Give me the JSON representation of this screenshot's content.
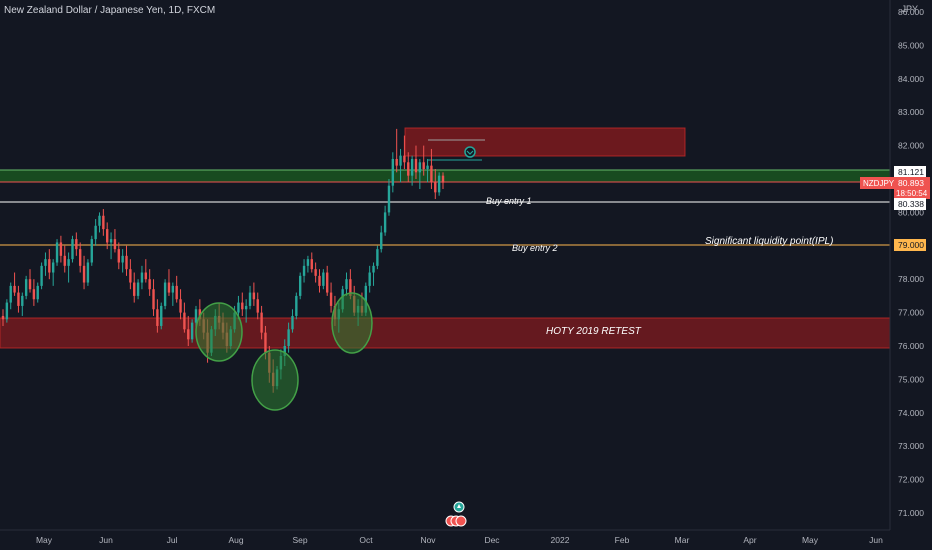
{
  "header": {
    "title": "New Zealand Dollar / Japanese Yen, 1D, FXCM",
    "currency": "JPY"
  },
  "colors": {
    "background": "#131722",
    "up_candle": "#26a69a",
    "down_candle": "#ef5350",
    "zone_red": "#b71c1c",
    "zone_green": "#1b5e20",
    "ellipse_green": "#2e7d32",
    "ipl_line": "#ffb74d",
    "entry_line": "#ffffff"
  },
  "chart_data": {
    "type": "candlestick",
    "symbol": "NZDJPY",
    "x_ticks": [
      "May",
      "Jun",
      "Jul",
      "Aug",
      "Sep",
      "Oct",
      "Nov",
      "Dec",
      "2022",
      "Feb",
      "Mar",
      "Apr",
      "May",
      "Jun"
    ],
    "y_ticks": [
      "71.000",
      "72.000",
      "73.000",
      "74.000",
      "75.000",
      "76.000",
      "77.000",
      "78.000",
      "79.000",
      "80.000",
      "81.000",
      "82.000",
      "83.000",
      "84.000",
      "85.000",
      "86.000"
    ],
    "ylim": [
      70.3,
      86.2
    ],
    "price_labels": {
      "top_zone": "81.121",
      "symbol_tag": "NZDJPY",
      "last_price": "80.893",
      "countdown": "18:50:54",
      "buy_entry_1": "80.338",
      "ipl": "79.000"
    },
    "levels": {
      "buy_entry_1": 80.338,
      "ipl": 79.0,
      "green_zone": [
        80.85,
        81.2
      ]
    },
    "zones": [
      {
        "name": "HOTY 2019 RETEST",
        "low": 75.85,
        "high": 76.75
      },
      {
        "name": "",
        "low": 81.75,
        "high": 82.6
      }
    ],
    "annotations": {
      "buy_entry_1": "Buy entry 1",
      "buy_entry_2": "Buy entry 2",
      "ipl_text": "Significant liquidity point(IPL)",
      "hoty_text": "HOTY 2019 RETEST"
    },
    "series": [
      {
        "name": "NZDJPY",
        "ohlc": [
          [
            76.9,
            77.1,
            76.6,
            76.8
          ],
          [
            76.8,
            77.4,
            76.7,
            77.3
          ],
          [
            77.3,
            77.9,
            77.1,
            77.8
          ],
          [
            77.8,
            78.2,
            77.5,
            77.6
          ],
          [
            77.6,
            77.8,
            77.0,
            77.2
          ],
          [
            77.2,
            77.6,
            76.9,
            77.5
          ],
          [
            77.5,
            78.1,
            77.4,
            78.0
          ],
          [
            78.0,
            78.3,
            77.6,
            77.7
          ],
          [
            77.7,
            78.0,
            77.2,
            77.4
          ],
          [
            77.4,
            77.9,
            77.3,
            77.8
          ],
          [
            77.8,
            78.5,
            77.7,
            78.4
          ],
          [
            78.4,
            78.8,
            78.1,
            78.6
          ],
          [
            78.6,
            78.9,
            78.0,
            78.2
          ],
          [
            78.2,
            78.6,
            77.8,
            78.5
          ],
          [
            78.5,
            79.2,
            78.4,
            79.1
          ],
          [
            79.1,
            79.3,
            78.5,
            78.7
          ],
          [
            78.7,
            79.0,
            78.2,
            78.4
          ],
          [
            78.4,
            78.8,
            77.9,
            78.6
          ],
          [
            78.6,
            79.3,
            78.5,
            79.2
          ],
          [
            79.2,
            79.4,
            78.7,
            78.9
          ],
          [
            78.9,
            79.1,
            78.2,
            78.4
          ],
          [
            78.4,
            78.7,
            77.7,
            77.9
          ],
          [
            77.9,
            78.6,
            77.8,
            78.5
          ],
          [
            78.5,
            79.3,
            78.4,
            79.2
          ],
          [
            79.2,
            79.8,
            79.0,
            79.6
          ],
          [
            79.6,
            80.0,
            79.4,
            79.9
          ],
          [
            79.9,
            80.1,
            79.3,
            79.5
          ],
          [
            79.5,
            79.7,
            78.9,
            79.1
          ],
          [
            79.1,
            79.4,
            78.6,
            79.2
          ],
          [
            79.2,
            79.5,
            78.8,
            78.9
          ],
          [
            78.9,
            79.1,
            78.3,
            78.5
          ],
          [
            78.5,
            78.9,
            78.2,
            78.7
          ],
          [
            78.7,
            79.0,
            78.1,
            78.3
          ],
          [
            78.3,
            78.6,
            77.7,
            77.9
          ],
          [
            77.9,
            78.2,
            77.3,
            77.5
          ],
          [
            77.5,
            78.0,
            77.4,
            77.9
          ],
          [
            77.9,
            78.4,
            77.7,
            78.2
          ],
          [
            78.2,
            78.6,
            77.9,
            78.0
          ],
          [
            78.0,
            78.3,
            77.5,
            77.7
          ],
          [
            77.7,
            78.0,
            76.9,
            77.1
          ],
          [
            77.1,
            77.4,
            76.4,
            76.6
          ],
          [
            76.6,
            77.3,
            76.5,
            77.2
          ],
          [
            77.2,
            78.0,
            77.1,
            77.9
          ],
          [
            77.9,
            78.3,
            77.5,
            77.6
          ],
          [
            77.6,
            77.9,
            77.2,
            77.8
          ],
          [
            77.8,
            78.1,
            77.3,
            77.4
          ],
          [
            77.4,
            77.7,
            76.8,
            77.0
          ],
          [
            77.0,
            77.3,
            76.4,
            76.5
          ],
          [
            76.5,
            76.9,
            76.0,
            76.2
          ],
          [
            76.2,
            76.8,
            76.1,
            76.7
          ],
          [
            76.7,
            77.2,
            76.4,
            77.1
          ],
          [
            77.1,
            77.4,
            76.6,
            76.8
          ],
          [
            76.8,
            77.0,
            76.2,
            76.4
          ],
          [
            76.4,
            76.8,
            75.5,
            75.8
          ],
          [
            75.8,
            76.6,
            75.7,
            76.5
          ],
          [
            76.5,
            77.1,
            76.3,
            76.9
          ],
          [
            76.9,
            77.3,
            76.5,
            76.7
          ],
          [
            76.7,
            77.0,
            76.2,
            76.4
          ],
          [
            76.4,
            76.7,
            75.8,
            76.0
          ],
          [
            76.0,
            76.6,
            75.9,
            76.5
          ],
          [
            76.5,
            77.2,
            76.4,
            77.0
          ],
          [
            77.0,
            77.5,
            76.8,
            77.3
          ],
          [
            77.3,
            77.6,
            76.9,
            77.1
          ],
          [
            77.1,
            77.4,
            76.7,
            77.2
          ],
          [
            77.2,
            77.8,
            77.1,
            77.6
          ],
          [
            77.6,
            77.9,
            77.2,
            77.4
          ],
          [
            77.4,
            77.6,
            76.8,
            77.0
          ],
          [
            77.0,
            77.2,
            76.2,
            76.4
          ],
          [
            76.4,
            76.6,
            75.6,
            75.8
          ],
          [
            75.8,
            76.0,
            74.9,
            75.2
          ],
          [
            75.2,
            75.6,
            74.6,
            74.8
          ],
          [
            74.8,
            75.4,
            74.7,
            75.3
          ],
          [
            75.3,
            75.9,
            75.0,
            75.7
          ],
          [
            75.7,
            76.2,
            75.4,
            76.0
          ],
          [
            76.0,
            76.7,
            75.8,
            76.5
          ],
          [
            76.5,
            77.1,
            76.4,
            76.9
          ],
          [
            76.9,
            77.6,
            76.8,
            77.5
          ],
          [
            77.5,
            78.2,
            77.4,
            78.1
          ],
          [
            78.1,
            78.6,
            77.9,
            78.4
          ],
          [
            78.4,
            78.7,
            78.2,
            78.6
          ],
          [
            78.6,
            78.8,
            78.2,
            78.3
          ],
          [
            78.3,
            78.5,
            77.9,
            78.1
          ],
          [
            78.1,
            78.3,
            77.6,
            77.8
          ],
          [
            77.8,
            78.3,
            77.7,
            78.2
          ],
          [
            78.2,
            78.4,
            77.5,
            77.6
          ],
          [
            77.6,
            77.9,
            77.0,
            77.2
          ],
          [
            77.2,
            77.5,
            76.6,
            76.8
          ],
          [
            76.8,
            77.3,
            76.4,
            77.1
          ],
          [
            77.1,
            77.8,
            77.0,
            77.7
          ],
          [
            77.7,
            78.2,
            77.5,
            78.0
          ],
          [
            78.0,
            78.3,
            77.4,
            77.5
          ],
          [
            77.5,
            77.8,
            76.9,
            77.0
          ],
          [
            77.0,
            77.4,
            76.6,
            77.2
          ],
          [
            77.2,
            77.6,
            76.9,
            77.0
          ],
          [
            77.0,
            77.9,
            76.9,
            77.8
          ],
          [
            77.8,
            78.4,
            77.6,
            78.2
          ],
          [
            78.2,
            78.5,
            77.8,
            78.4
          ],
          [
            78.4,
            79.0,
            78.3,
            78.9
          ],
          [
            78.9,
            79.6,
            78.8,
            79.4
          ],
          [
            79.4,
            80.2,
            79.3,
            80.0
          ],
          [
            80.0,
            81.0,
            79.9,
            80.8
          ],
          [
            80.8,
            81.8,
            80.6,
            81.6
          ],
          [
            81.6,
            82.5,
            81.2,
            81.4
          ],
          [
            81.4,
            81.9,
            80.9,
            81.7
          ],
          [
            81.7,
            82.3,
            81.3,
            81.5
          ],
          [
            81.5,
            81.8,
            80.9,
            81.1
          ],
          [
            81.1,
            81.7,
            80.8,
            81.6
          ],
          [
            81.6,
            82.0,
            81.0,
            81.2
          ],
          [
            81.2,
            81.6,
            80.7,
            81.5
          ],
          [
            81.5,
            82.0,
            81.1,
            81.3
          ],
          [
            81.3,
            81.6,
            80.9,
            81.4
          ],
          [
            81.4,
            81.9,
            80.7,
            80.9
          ],
          [
            80.9,
            81.3,
            80.4,
            80.6
          ],
          [
            80.6,
            81.2,
            80.5,
            81.1
          ],
          [
            81.1,
            81.2,
            80.7,
            80.89
          ]
        ]
      }
    ]
  }
}
